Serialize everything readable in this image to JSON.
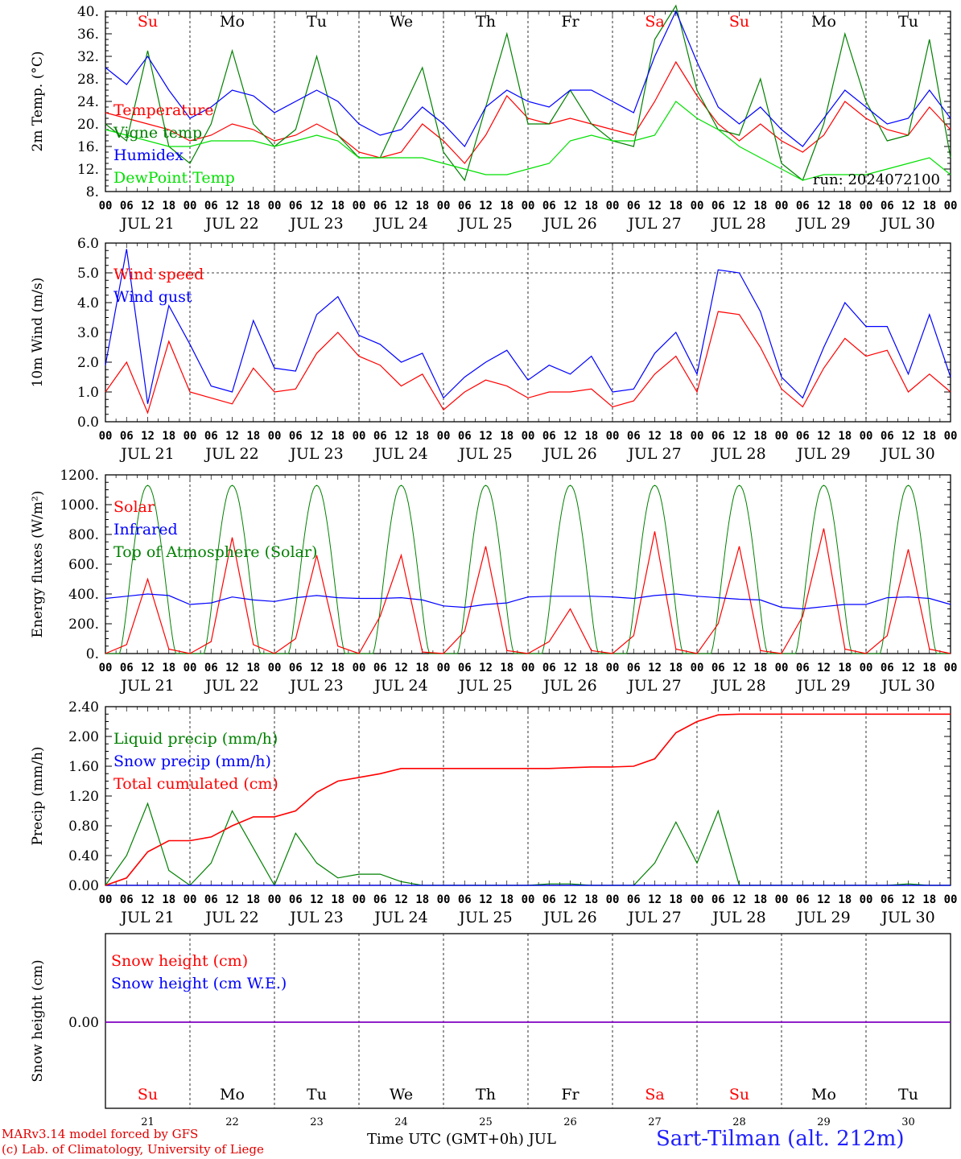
{
  "colors": {
    "red": "#ff0000",
    "green": "#008000",
    "blue": "#0000ff",
    "lime": "#00e000",
    "axis": "#000000",
    "purple": "#8000c0"
  },
  "weekdays": [
    "Su",
    "Mo",
    "Tu",
    "We",
    "Th",
    "Fr",
    "Sa",
    "Su",
    "Mo",
    "Tu"
  ],
  "weekday_red": [
    true,
    false,
    false,
    false,
    false,
    false,
    true,
    true,
    false,
    false
  ],
  "date_labels": [
    "JUL 21",
    "JUL 22",
    "JUL 23",
    "JUL 24",
    "JUL 25",
    "JUL 26",
    "JUL 27",
    "JUL 28",
    "JUL 29",
    "JUL 30"
  ],
  "day_numbers": [
    "21",
    "22",
    "23",
    "24",
    "25",
    "26",
    "27",
    "28",
    "29",
    "30"
  ],
  "hour_labels": [
    "00",
    "06",
    "12",
    "18"
  ],
  "run_label": "run: 2024072100",
  "footer": {
    "line1": "MARv3.14 model forced by GFS",
    "line2": "(c) Lab. of Climatology, University of Liege",
    "xlabel": "Time UTC (GMT+0h) JUL",
    "station": "Sart-Tilman (alt. 212m)"
  },
  "chart_data": [
    {
      "type": "line",
      "ylabel": "2m Temp. (°C)",
      "ylim": [
        8,
        40
      ],
      "yticks": [
        "8.",
        "12.",
        "16.",
        "20.",
        "24.",
        "28.",
        "32.",
        "36.",
        "40."
      ],
      "legend": [
        "Temperature",
        "Vigne temp",
        "Humidex",
        "DewPoint Temp"
      ],
      "x_hours": [
        0,
        6,
        12,
        18,
        24,
        30,
        36,
        42,
        48,
        54,
        60,
        66,
        72,
        78,
        84,
        90,
        96,
        102,
        108,
        114,
        120,
        126,
        132,
        138,
        144,
        150,
        156,
        162,
        168,
        174,
        180,
        186,
        192,
        198,
        204,
        210,
        216,
        222,
        228,
        234,
        240
      ],
      "series": [
        {
          "name": "Temperature",
          "color": "red",
          "values": [
            22,
            21,
            20,
            19,
            17,
            18,
            20,
            19,
            17,
            18,
            20,
            18,
            15,
            14,
            15,
            20,
            17,
            13,
            18,
            25,
            21,
            20,
            21,
            20,
            19,
            18,
            24,
            31,
            25,
            20,
            17,
            20,
            17,
            15,
            18,
            24,
            21,
            19,
            18,
            23,
            19
          ]
        },
        {
          "name": "Vigne temp",
          "color": "green",
          "values": [
            20,
            17,
            33,
            16,
            13,
            20,
            33,
            20,
            16,
            19,
            32,
            18,
            14,
            14,
            22,
            30,
            15,
            10,
            23,
            36,
            20,
            20,
            26,
            20,
            17,
            16,
            35,
            41,
            26,
            19,
            18,
            28,
            13,
            10,
            20,
            36,
            24,
            17,
            18,
            35,
            14
          ]
        },
        {
          "name": "Humidex",
          "color": "blue",
          "values": [
            30,
            27,
            32,
            26,
            21,
            23,
            26,
            25,
            22,
            24,
            26,
            24,
            20,
            18,
            19,
            23,
            20,
            16,
            23,
            26,
            24,
            23,
            26,
            26,
            24,
            22,
            32,
            40,
            31,
            23,
            20,
            23,
            19,
            16,
            21,
            26,
            23,
            20,
            21,
            26,
            21
          ]
        },
        {
          "name": "DewPoint Temp",
          "color": "lime",
          "values": [
            19,
            18,
            17,
            16,
            16,
            17,
            17,
            17,
            16,
            17,
            18,
            17,
            14,
            14,
            14,
            14,
            13,
            12,
            11,
            11,
            12,
            13,
            17,
            18,
            17,
            17,
            18,
            24,
            21,
            19,
            16,
            14,
            12,
            10,
            11,
            11,
            11,
            12,
            13,
            14,
            11
          ]
        }
      ]
    },
    {
      "type": "line",
      "ylabel": "10m Wind (m/s)",
      "ylim": [
        0,
        6
      ],
      "yticks": [
        "0.0",
        "1.0",
        "2.0",
        "3.0",
        "4.0",
        "5.0",
        "6.0"
      ],
      "dashed_y": 5,
      "legend": [
        "Wind speed",
        "Wind gust"
      ],
      "x_hours": [
        0,
        6,
        12,
        18,
        24,
        30,
        36,
        42,
        48,
        54,
        60,
        66,
        72,
        78,
        84,
        90,
        96,
        102,
        108,
        114,
        120,
        126,
        132,
        138,
        144,
        150,
        156,
        162,
        168,
        174,
        180,
        186,
        192,
        198,
        204,
        210,
        216,
        222,
        228,
        234,
        240
      ],
      "series": [
        {
          "name": "Wind speed",
          "color": "red",
          "values": [
            1.0,
            2.0,
            0.3,
            2.7,
            1.0,
            0.8,
            0.6,
            1.8,
            1.0,
            1.1,
            2.3,
            3.0,
            2.2,
            1.9,
            1.2,
            1.6,
            0.4,
            1.0,
            1.4,
            1.2,
            0.8,
            1.0,
            1.0,
            1.1,
            0.5,
            0.7,
            1.6,
            2.2,
            1.0,
            3.7,
            3.6,
            2.5,
            1.1,
            0.5,
            1.8,
            2.8,
            2.2,
            2.4,
            1.0,
            1.6,
            1.0
          ]
        },
        {
          "name": "Wind gust",
          "color": "blue",
          "values": [
            1.9,
            5.8,
            0.6,
            3.9,
            2.6,
            1.2,
            1.0,
            3.4,
            1.8,
            1.7,
            3.6,
            4.2,
            2.9,
            2.6,
            2.0,
            2.3,
            0.8,
            1.5,
            2.0,
            2.4,
            1.4,
            1.9,
            1.6,
            2.2,
            1.0,
            1.1,
            2.3,
            3.0,
            1.6,
            5.1,
            5.0,
            3.7,
            1.5,
            0.8,
            2.5,
            4.0,
            3.2,
            3.2,
            1.6,
            3.6,
            1.5
          ]
        }
      ]
    },
    {
      "type": "line",
      "ylabel": "Energy fluxes (W/m²)",
      "ylim": [
        0,
        1200
      ],
      "yticks": [
        "0.",
        "200.",
        "400.",
        "600.",
        "800.",
        "1000.",
        "1200."
      ],
      "legend": [
        "Solar",
        "Infrared",
        "Top of Atmosphere (Solar)"
      ],
      "toa_peak": 1130,
      "x_hours": [
        0,
        6,
        12,
        18,
        24,
        30,
        36,
        42,
        48,
        54,
        60,
        66,
        72,
        78,
        84,
        90,
        96,
        102,
        108,
        114,
        120,
        126,
        132,
        138,
        144,
        150,
        156,
        162,
        168,
        174,
        180,
        186,
        192,
        198,
        204,
        210,
        216,
        222,
        228,
        234,
        240
      ],
      "series": [
        {
          "name": "Solar",
          "color": "red",
          "values": [
            0,
            60,
            500,
            30,
            0,
            80,
            780,
            60,
            0,
            100,
            660,
            50,
            0,
            250,
            660,
            10,
            0,
            150,
            720,
            20,
            0,
            80,
            300,
            20,
            0,
            120,
            820,
            30,
            0,
            200,
            720,
            20,
            0,
            250,
            840,
            30,
            0,
            120,
            700,
            30,
            0
          ]
        },
        {
          "name": "Infrared",
          "color": "blue",
          "values": [
            370,
            385,
            400,
            390,
            330,
            340,
            380,
            360,
            350,
            375,
            390,
            375,
            370,
            370,
            375,
            360,
            320,
            310,
            330,
            340,
            380,
            385,
            385,
            385,
            380,
            370,
            390,
            400,
            385,
            375,
            365,
            360,
            310,
            300,
            315,
            330,
            330,
            375,
            380,
            370,
            330
          ]
        }
      ]
    },
    {
      "type": "line",
      "ylabel": "Precip (mm/h)",
      "ylim": [
        0,
        2.4
      ],
      "yticks": [
        "0.00",
        "0.40",
        "0.80",
        "1.20",
        "1.60",
        "2.00",
        "2.40"
      ],
      "legend": [
        "Liquid precip (mm/h)",
        "Snow precip (mm/h)",
        "Total cumulated (cm)"
      ],
      "x_hours": [
        0,
        6,
        12,
        18,
        24,
        30,
        36,
        42,
        48,
        54,
        60,
        66,
        72,
        78,
        84,
        90,
        96,
        102,
        108,
        114,
        120,
        126,
        132,
        138,
        144,
        150,
        156,
        162,
        168,
        174,
        180,
        186,
        192,
        198,
        204,
        210,
        216,
        222,
        228,
        234,
        240
      ],
      "series": [
        {
          "name": "Liquid precip (mm/h)",
          "color": "green",
          "values": [
            0,
            0.4,
            1.1,
            0.2,
            0,
            0.3,
            1.0,
            0.5,
            0,
            0.7,
            0.3,
            0.1,
            0.15,
            0.15,
            0.05,
            0,
            0,
            0,
            0,
            0,
            0,
            0.02,
            0.02,
            0,
            0,
            0,
            0.3,
            0.85,
            0.3,
            1.0,
            0,
            0,
            0,
            0,
            0,
            0,
            0,
            0,
            0.02,
            0,
            0
          ]
        },
        {
          "name": "Snow precip (mm/h)",
          "color": "blue",
          "values": [
            0,
            0,
            0,
            0,
            0,
            0,
            0,
            0,
            0,
            0,
            0,
            0,
            0,
            0,
            0,
            0,
            0,
            0,
            0,
            0,
            0,
            0,
            0,
            0,
            0,
            0,
            0,
            0,
            0,
            0,
            0,
            0,
            0,
            0,
            0,
            0,
            0,
            0,
            0,
            0,
            0
          ]
        },
        {
          "name": "Total cumulated (cm)",
          "color": "red",
          "values": [
            0,
            0.1,
            0.45,
            0.6,
            0.6,
            0.65,
            0.8,
            0.92,
            0.92,
            1.0,
            1.25,
            1.4,
            1.45,
            1.5,
            1.57,
            1.57,
            1.57,
            1.57,
            1.57,
            1.57,
            1.57,
            1.57,
            1.58,
            1.59,
            1.59,
            1.6,
            1.7,
            2.05,
            2.2,
            2.29,
            2.3,
            2.3,
            2.3,
            2.3,
            2.3,
            2.3,
            2.3,
            2.3,
            2.3,
            2.3,
            2.3
          ]
        }
      ]
    },
    {
      "type": "line",
      "ylabel": "Snow height (cm)",
      "yticks": [
        "0.00"
      ],
      "legend": [
        "Snow height (cm)",
        "Snow height (cm W.E.)"
      ],
      "series": [
        {
          "name": "Snow height (cm)",
          "color": "red",
          "values": [
            0,
            0
          ]
        },
        {
          "name": "Snow height (cm W.E.)",
          "color": "blue",
          "values": [
            0,
            0
          ]
        }
      ]
    }
  ]
}
